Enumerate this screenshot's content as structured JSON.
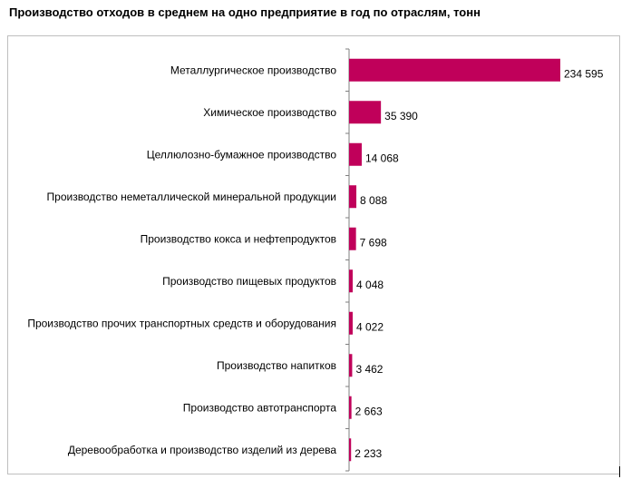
{
  "chart_data": {
    "type": "bar",
    "orientation": "horizontal",
    "title": "Производство отходов в среднем на одно предприятие в год по отраслям, тонн",
    "xlabel": "",
    "ylabel": "",
    "categories": [
      "Металлургическое производство",
      "Химическое производство",
      "Целлюлозно-бумажное производство",
      "Производство неметаллической минеральной продукции",
      "Производство кокса и нефтепродуктов",
      "Производство пищевых продуктов",
      "Производство прочих транспортных средств и оборудования",
      "Производство напитков",
      "Производство автотранспорта",
      "Деревообработка и производство изделий из дерева"
    ],
    "values": [
      234595,
      35390,
      14068,
      8088,
      7698,
      4048,
      4022,
      3462,
      2663,
      2233
    ],
    "value_labels": [
      "234 595",
      "35 390",
      "14 068",
      "8 088",
      "7 698",
      "4 048",
      "4 022",
      "3 462",
      "2 663",
      "2 233"
    ],
    "xlim": [
      0,
      240000
    ],
    "grid": false,
    "legend": "none",
    "bar_color": "#c0005a",
    "axis_color": "#7f7f7f"
  }
}
